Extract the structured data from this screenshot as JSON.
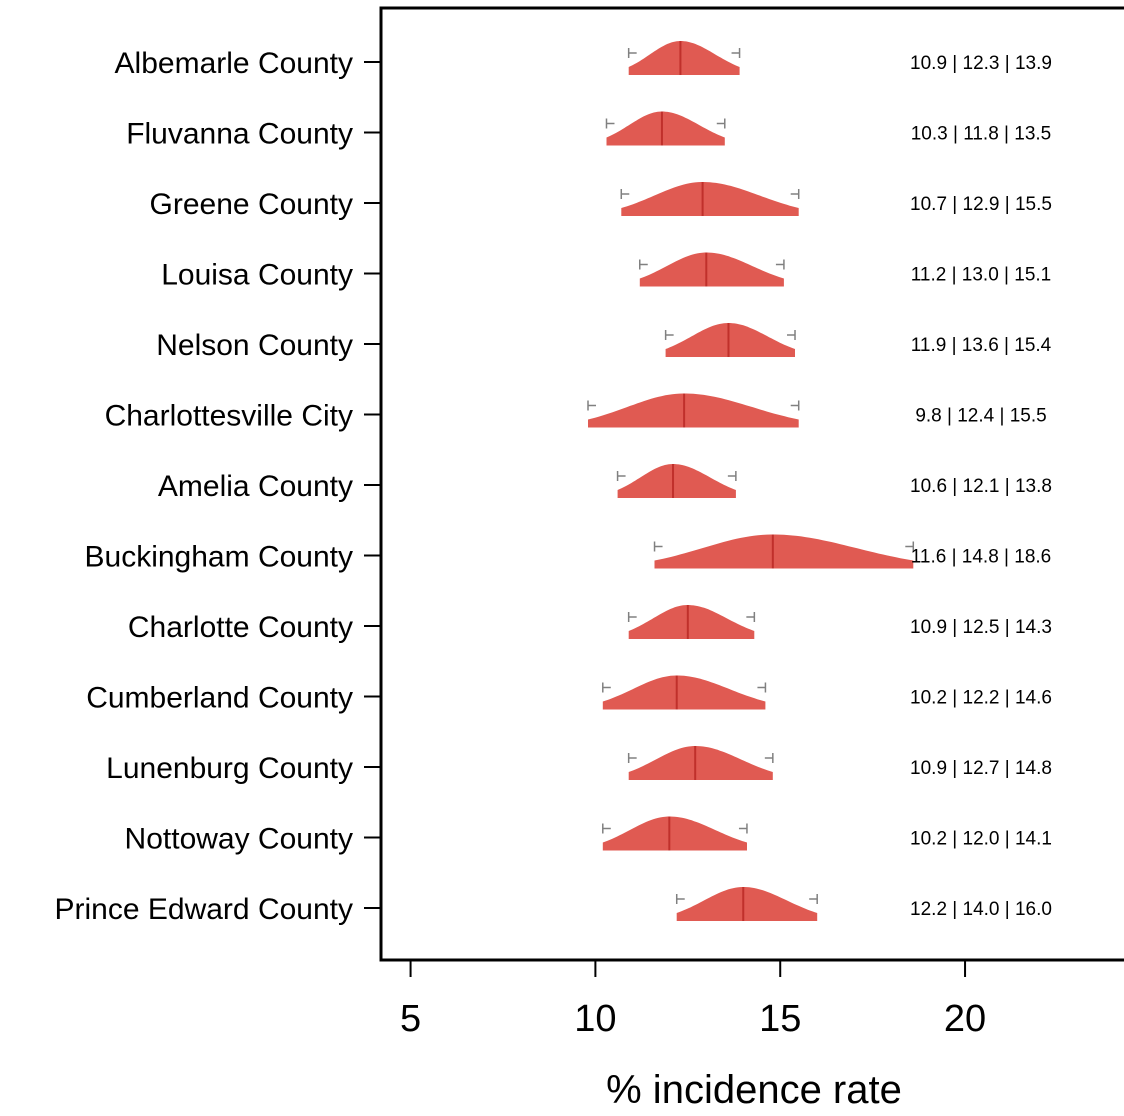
{
  "chart_data": {
    "type": "ridgeline",
    "xlabel": "% incidence rate",
    "xlim": [
      4.2,
      24.3
    ],
    "xticks": [
      5,
      10,
      15,
      20
    ],
    "colors": {
      "fill": "#e05a52",
      "median_line": "#c0302b",
      "whisker": "#808080"
    },
    "categories": [
      "Albemarle County",
      "Fluvanna County",
      "Greene County",
      "Louisa County",
      "Nelson County",
      "Charlottesville City",
      "Amelia County",
      "Buckingham County",
      "Charlotte County",
      "Cumberland County",
      "Lunenburg County",
      "Nottoway County",
      "Prince Edward County"
    ],
    "series": [
      {
        "low": 10.9,
        "median": 12.3,
        "high": 13.9,
        "label": "10.9 | 12.3 | 13.9"
      },
      {
        "low": 10.3,
        "median": 11.8,
        "high": 13.5,
        "label": "10.3 | 11.8 | 13.5"
      },
      {
        "low": 10.7,
        "median": 12.9,
        "high": 15.5,
        "label": "10.7 | 12.9 | 15.5"
      },
      {
        "low": 11.2,
        "median": 13.0,
        "high": 15.1,
        "label": "11.2 | 13.0 | 15.1"
      },
      {
        "low": 11.9,
        "median": 13.6,
        "high": 15.4,
        "label": "11.9 | 13.6 | 15.4"
      },
      {
        "low": 9.8,
        "median": 12.4,
        "high": 15.5,
        "label": "9.8 | 12.4 | 15.5"
      },
      {
        "low": 10.6,
        "median": 12.1,
        "high": 13.8,
        "label": "10.6 | 12.1 | 13.8"
      },
      {
        "low": 11.6,
        "median": 14.8,
        "high": 18.6,
        "label": "11.6 | 14.8 | 18.6"
      },
      {
        "low": 10.9,
        "median": 12.5,
        "high": 14.3,
        "label": "10.9 | 12.5 | 14.3"
      },
      {
        "low": 10.2,
        "median": 12.2,
        "high": 14.6,
        "label": "10.2 | 12.2 | 14.6"
      },
      {
        "low": 10.9,
        "median": 12.7,
        "high": 14.8,
        "label": "10.9 | 12.7 | 14.8"
      },
      {
        "low": 10.2,
        "median": 12.0,
        "high": 14.1,
        "label": "10.2 | 12.0 | 14.1"
      },
      {
        "low": 12.2,
        "median": 14.0,
        "high": 16.0,
        "label": "12.2 | 14.0 | 16.0"
      }
    ]
  }
}
